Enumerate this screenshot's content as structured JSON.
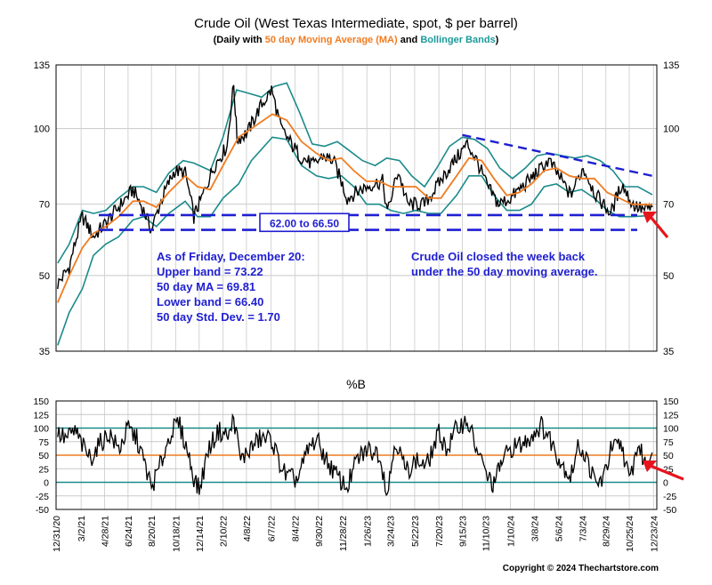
{
  "chart_data": [
    {
      "type": "line",
      "title": "Crude Oil (West Texas Intermediate, spot, $ per barrel)",
      "subtitle_parts": [
        {
          "text": "(Daily with ",
          "color": "#000000"
        },
        {
          "text": "50 day Moving Average (MA)",
          "color": "#f07c21"
        },
        {
          "text": " and ",
          "color": "#000000"
        },
        {
          "text": "Bollinger Bands",
          "color": "#1b9a9a"
        },
        {
          "text": ")",
          "color": "#000000"
        }
      ],
      "y_scale": "log",
      "ylim": [
        35,
        135
      ],
      "y_ticks": [
        35,
        50,
        70,
        100,
        135
      ],
      "y_tick_labels": [
        "35",
        "50",
        "70",
        "100",
        "135"
      ],
      "x_range": [
        "2020-12-31",
        "2024-12-31"
      ],
      "x_ticks": [
        "12/31/20",
        "3/2/21",
        "4/28/21",
        "6/24/21",
        "8/20/21",
        "10/18/21",
        "12/14/21",
        "2/10/22",
        "4/8/22",
        "6/7/22",
        "8/4/22",
        "9/30/22",
        "11/28/22",
        "1/26/23",
        "3/24/23",
        "5/22/23",
        "7/20/23",
        "9/15/23",
        "11/10/23",
        "1/10/24",
        "3/8/24",
        "5/6/24",
        "7/3/24",
        "8/29/24",
        "10/25/24",
        "12/23/24"
      ],
      "colors": {
        "price": "#000000",
        "ma": "#f07c21",
        "bands": "#1b8a8a",
        "annotation": "#1f1fd2",
        "arrow": "#e8141c"
      },
      "series": [
        {
          "name": "Crude Oil price",
          "x": [
            "2021-01-04",
            "2021-02-01",
            "2021-03-05",
            "2021-04-01",
            "2021-05-01",
            "2021-06-01",
            "2021-07-06",
            "2021-08-01",
            "2021-08-20",
            "2021-09-15",
            "2021-10-15",
            "2021-11-10",
            "2021-12-01",
            "2021-12-20",
            "2022-01-20",
            "2022-02-20",
            "2022-03-08",
            "2022-03-16",
            "2022-04-10",
            "2022-05-10",
            "2022-06-08",
            "2022-07-01",
            "2022-07-15",
            "2022-08-15",
            "2022-09-20",
            "2022-10-10",
            "2022-11-05",
            "2022-12-09",
            "2023-01-10",
            "2023-02-10",
            "2023-03-05",
            "2023-03-17",
            "2023-04-12",
            "2023-05-04",
            "2023-06-15",
            "2023-07-10",
            "2023-08-10",
            "2023-09-27",
            "2023-10-20",
            "2023-11-15",
            "2023-12-12",
            "2024-01-10",
            "2024-02-15",
            "2024-03-20",
            "2024-04-12",
            "2024-05-15",
            "2024-06-04",
            "2024-07-05",
            "2024-08-05",
            "2024-09-10",
            "2024-10-07",
            "2024-11-01",
            "2024-12-01",
            "2024-12-20"
          ],
          "values": [
            48,
            52,
            66,
            60,
            64,
            69,
            75,
            68,
            62,
            72,
            82,
            81,
            66,
            72,
            84,
            92,
            123,
            95,
            98,
            110,
            120,
            100,
            96,
            88,
            84,
            88,
            86,
            72,
            75,
            77,
            78,
            67,
            82,
            70,
            70,
            75,
            82,
            93,
            86,
            76,
            70,
            72,
            77,
            82,
            86,
            78,
            73,
            83,
            73,
            67,
            77,
            70,
            68,
            69
          ]
        },
        {
          "name": "50 day MA",
          "x": [
            "2021-01-04",
            "2021-02-01",
            "2021-03-05",
            "2021-04-01",
            "2021-05-01",
            "2021-06-01",
            "2021-07-06",
            "2021-08-01",
            "2021-09-01",
            "2021-10-01",
            "2021-11-10",
            "2021-12-10",
            "2022-01-10",
            "2022-02-10",
            "2022-03-20",
            "2022-04-20",
            "2022-06-10",
            "2022-07-15",
            "2022-08-20",
            "2022-09-25",
            "2022-10-25",
            "2022-11-25",
            "2022-12-25",
            "2023-01-25",
            "2023-02-25",
            "2023-03-25",
            "2023-04-25",
            "2023-05-25",
            "2023-06-25",
            "2023-07-25",
            "2023-09-01",
            "2023-10-01",
            "2023-11-01",
            "2023-12-01",
            "2024-01-01",
            "2024-02-01",
            "2024-03-01",
            "2024-04-01",
            "2024-05-01",
            "2024-06-01",
            "2024-07-01",
            "2024-08-01",
            "2024-09-01",
            "2024-10-01",
            "2024-11-01",
            "2024-12-20"
          ],
          "values": [
            44,
            50,
            57,
            61,
            63,
            66,
            71,
            71,
            69,
            74,
            80,
            76,
            75,
            84,
            96,
            100,
            107,
            104,
            94,
            89,
            86,
            87,
            82,
            78,
            78,
            76,
            76,
            76,
            72,
            72,
            80,
            87,
            86,
            79,
            73,
            74,
            77,
            82,
            83,
            80,
            79,
            79,
            74,
            72,
            70,
            69.81
          ]
        },
        {
          "name": "Upper Bollinger Band",
          "x": [
            "2021-01-04",
            "2021-02-01",
            "2021-03-05",
            "2021-04-01",
            "2021-05-01",
            "2021-06-01",
            "2021-07-06",
            "2021-08-01",
            "2021-09-01",
            "2021-10-01",
            "2021-11-05",
            "2021-12-01",
            "2022-01-10",
            "2022-02-10",
            "2022-03-15",
            "2022-04-15",
            "2022-05-15",
            "2022-06-15",
            "2022-07-15",
            "2022-08-15",
            "2022-09-15",
            "2022-10-15",
            "2022-11-15",
            "2022-12-15",
            "2023-01-15",
            "2023-02-15",
            "2023-03-15",
            "2023-04-15",
            "2023-05-15",
            "2023-06-15",
            "2023-07-15",
            "2023-08-15",
            "2023-09-15",
            "2023-10-15",
            "2023-11-15",
            "2023-12-15",
            "2024-01-15",
            "2024-02-15",
            "2024-03-15",
            "2024-04-15",
            "2024-05-15",
            "2024-06-15",
            "2024-07-15",
            "2024-08-15",
            "2024-09-15",
            "2024-10-15",
            "2024-11-15",
            "2024-12-20"
          ],
          "values": [
            53,
            58,
            68,
            67,
            68,
            72,
            76,
            76,
            74,
            81,
            86,
            85,
            82,
            96,
            120,
            118,
            116,
            122,
            124,
            108,
            93,
            92,
            94,
            90,
            86,
            84,
            87,
            86,
            80,
            76,
            83,
            92,
            96,
            95,
            91,
            83,
            79,
            83,
            88,
            89,
            88,
            87,
            88,
            86,
            82,
            76,
            76,
            73.22
          ]
        },
        {
          "name": "Lower Bollinger Band",
          "x": [
            "2021-01-04",
            "2021-02-01",
            "2021-03-05",
            "2021-04-01",
            "2021-05-01",
            "2021-06-01",
            "2021-07-06",
            "2021-08-01",
            "2021-09-01",
            "2021-10-01",
            "2021-11-10",
            "2021-12-10",
            "2022-01-10",
            "2022-02-10",
            "2022-03-20",
            "2022-04-20",
            "2022-06-10",
            "2022-07-15",
            "2022-08-20",
            "2022-09-25",
            "2022-10-25",
            "2022-11-25",
            "2022-12-25",
            "2023-01-25",
            "2023-02-25",
            "2023-03-25",
            "2023-04-25",
            "2023-05-25",
            "2023-06-25",
            "2023-07-25",
            "2023-09-01",
            "2023-10-01",
            "2023-11-01",
            "2023-12-01",
            "2024-01-01",
            "2024-02-01",
            "2024-03-01",
            "2024-04-01",
            "2024-05-01",
            "2024-06-01",
            "2024-07-01",
            "2024-08-01",
            "2024-09-01",
            "2024-10-01",
            "2024-11-01",
            "2024-12-20"
          ],
          "values": [
            36,
            42,
            47,
            55,
            58,
            60,
            65,
            66,
            63,
            67,
            71,
            66,
            66,
            72,
            77,
            86,
            96,
            95,
            84,
            80,
            79,
            80,
            76,
            70,
            70,
            68,
            67,
            68,
            67,
            67,
            73,
            80,
            80,
            73,
            68,
            68,
            70,
            76,
            77,
            74,
            75,
            72,
            68,
            66,
            66,
            66.4
          ]
        }
      ],
      "annotations": {
        "band_box_label": "62.00 to 66.50",
        "band_lines": [
          62.0,
          66.5
        ],
        "trendline_from": [
          "2023-09-15",
          97
        ],
        "trendline_to": [
          "2024-12-20",
          80
        ],
        "left_text": [
          "As of Friday, December 20:",
          "Upper band = 73.22",
          "50 day MA = 69.81",
          "Lower band = 66.40",
          "50 day Std. Dev. = 1.70"
        ],
        "right_text": [
          "Crude Oil closed the week back",
          "under the 50 day moving average."
        ]
      }
    },
    {
      "type": "line",
      "title": "%B",
      "ylim": [
        -50,
        150
      ],
      "y_ticks": [
        -50,
        -25,
        0,
        25,
        50,
        75,
        100,
        125,
        150
      ],
      "y_tick_labels": [
        "-50",
        "-25",
        "0",
        "25",
        "50",
        "75",
        "100",
        "125",
        "150"
      ],
      "reference_lines": [
        {
          "y": 100,
          "color": "#1b8a8a"
        },
        {
          "y": 50,
          "color": "#f07c21"
        },
        {
          "y": 0,
          "color": "#1b8a8a"
        }
      ],
      "series": [
        {
          "name": "%B",
          "x": [
            "2021-01-04",
            "2021-01-25",
            "2021-02-15",
            "2021-03-10",
            "2021-03-25",
            "2021-04-15",
            "2021-05-10",
            "2021-06-01",
            "2021-06-25",
            "2021-07-15",
            "2021-08-01",
            "2021-08-20",
            "2021-09-10",
            "2021-10-05",
            "2021-10-25",
            "2021-11-15",
            "2021-12-01",
            "2021-12-14",
            "2022-01-05",
            "2022-01-30",
            "2022-02-25",
            "2022-03-08",
            "2022-03-25",
            "2022-04-15",
            "2022-05-10",
            "2022-06-08",
            "2022-06-25",
            "2022-07-15",
            "2022-08-10",
            "2022-09-05",
            "2022-09-25",
            "2022-10-20",
            "2022-11-15",
            "2022-12-08",
            "2023-01-01",
            "2023-01-25",
            "2023-02-25",
            "2023-03-17",
            "2023-04-05",
            "2023-05-01",
            "2023-05-25",
            "2023-06-20",
            "2023-07-20",
            "2023-08-10",
            "2023-09-01",
            "2023-09-27",
            "2023-10-20",
            "2023-11-15",
            "2023-12-01",
            "2023-12-20",
            "2024-01-15",
            "2024-02-10",
            "2024-03-05",
            "2024-03-25",
            "2024-04-15",
            "2024-05-10",
            "2024-06-04",
            "2024-06-25",
            "2024-07-15",
            "2024-08-05",
            "2024-08-25",
            "2024-09-10",
            "2024-10-07",
            "2024-10-25",
            "2024-11-15",
            "2024-12-05",
            "2024-12-20"
          ],
          "values": [
            90,
            80,
            95,
            60,
            45,
            70,
            90,
            60,
            100,
            80,
            40,
            -10,
            30,
            90,
            110,
            60,
            10,
            -15,
            60,
            95,
            85,
            120,
            40,
            60,
            80,
            80,
            40,
            10,
            5,
            60,
            80,
            40,
            10,
            -10,
            40,
            60,
            55,
            -20,
            80,
            20,
            40,
            30,
            90,
            60,
            100,
            115,
            60,
            10,
            -5,
            40,
            65,
            70,
            90,
            105,
            80,
            40,
            10,
            70,
            40,
            -5,
            10,
            60,
            70,
            0,
            70,
            30,
            55
          ]
        }
      ]
    }
  ],
  "footer": {
    "copyright": "Copyright © 2024 Thechartstore.com"
  }
}
